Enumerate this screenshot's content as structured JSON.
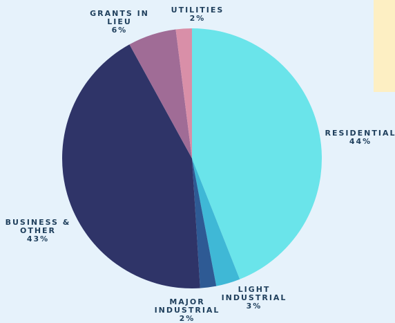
{
  "chart_data": {
    "type": "pie",
    "categories": [
      "RESIDENTIAL",
      "LIGHT INDUSTRIAL",
      "MAJOR INDUSTRIAL",
      "BUSINESS & OTHER",
      "GRANTS IN LIEU",
      "UTILITIES"
    ],
    "values": [
      44,
      3,
      2,
      43,
      6,
      2
    ],
    "value_labels": [
      "44%",
      "3%",
      "2%",
      "43%",
      "6%",
      "2%"
    ],
    "colors": [
      "#6ae4ea",
      "#3fb8d6",
      "#2e5a94",
      "#2f3468",
      "#a06c96",
      "#d98fa8"
    ]
  }
}
